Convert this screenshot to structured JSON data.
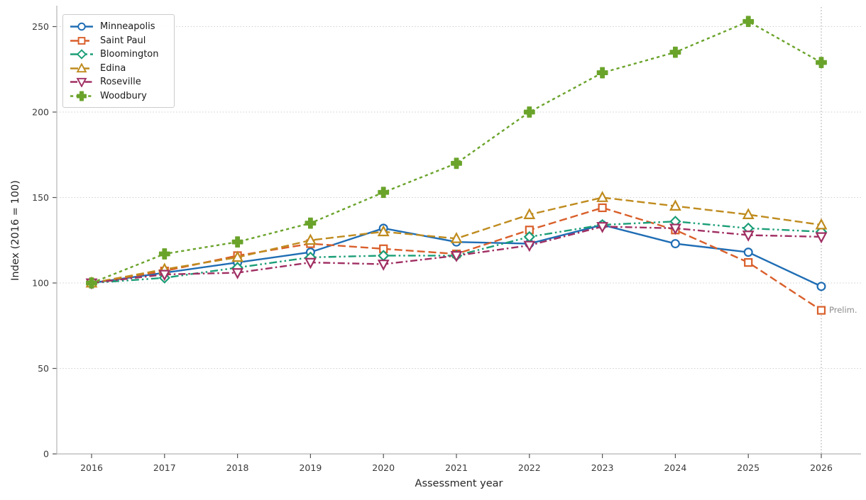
{
  "figure": {
    "xlabel": "Assessment year",
    "ylabel": "Index (2016 = 100)"
  },
  "chart_data": {
    "type": "line",
    "title": "",
    "xlabel": "Assessment year",
    "ylabel": "Index (2016 = 100)",
    "x": [
      2016,
      2017,
      2018,
      2019,
      2020,
      2021,
      2022,
      2023,
      2024,
      2025,
      2026
    ],
    "xtick_labels": [
      "2016",
      "2017",
      "2018",
      "2019",
      "2020",
      "2021",
      "2022",
      "2023",
      "2024",
      "2025",
      "2026"
    ],
    "yticks": [
      0,
      50,
      100,
      150,
      200,
      250
    ],
    "ylim": [
      0,
      262
    ],
    "grid": "horizontal-dotted",
    "legend_position": "upper-left",
    "vline_x": 2026,
    "annotation": {
      "text": "Prelim.",
      "x": 2026,
      "y": 84
    },
    "series": [
      {
        "name": "Minneapolis",
        "color": "#1f6db4",
        "dash": "solid",
        "marker": "circle",
        "open_marker": true,
        "values": [
          100,
          106,
          112,
          118,
          132,
          124,
          123,
          134,
          123,
          118,
          98
        ]
      },
      {
        "name": "Saint Paul",
        "color": "#d95f2b",
        "dash": "dashed",
        "marker": "square",
        "open_marker": true,
        "values": [
          100,
          107,
          116,
          123,
          120,
          117,
          131,
          144,
          131,
          112,
          84
        ]
      },
      {
        "name": "Bloomington",
        "color": "#1b9e77",
        "dash": "dashdotdot",
        "marker": "diamond",
        "open_marker": true,
        "values": [
          100,
          103,
          109,
          115,
          116,
          116,
          127,
          134,
          136,
          132,
          130
        ]
      },
      {
        "name": "Edina",
        "color": "#bf8b1e",
        "dash": "dashed",
        "marker": "triangle-up",
        "open_marker": true,
        "values": [
          100,
          108,
          115,
          125,
          130,
          126,
          140,
          150,
          145,
          140,
          134
        ]
      },
      {
        "name": "Roseville",
        "color": "#a02f63",
        "dash": "dashdot",
        "marker": "triangle-down",
        "open_marker": true,
        "values": [
          100,
          105,
          106,
          112,
          111,
          116,
          122,
          133,
          132,
          128,
          127
        ]
      },
      {
        "name": "Woodbury",
        "color": "#6aa32a",
        "dash": "dotted",
        "marker": "plus-filled",
        "open_marker": false,
        "values": [
          100,
          117,
          124,
          135,
          153,
          170,
          200,
          223,
          235,
          253,
          229
        ]
      }
    ],
    "colors": {
      "grid": "#cfcfcf",
      "spine": "#b5b5b5",
      "tick": "#555555",
      "tick_label": "#3a3a3a",
      "vline": "#aaaaaa"
    }
  }
}
